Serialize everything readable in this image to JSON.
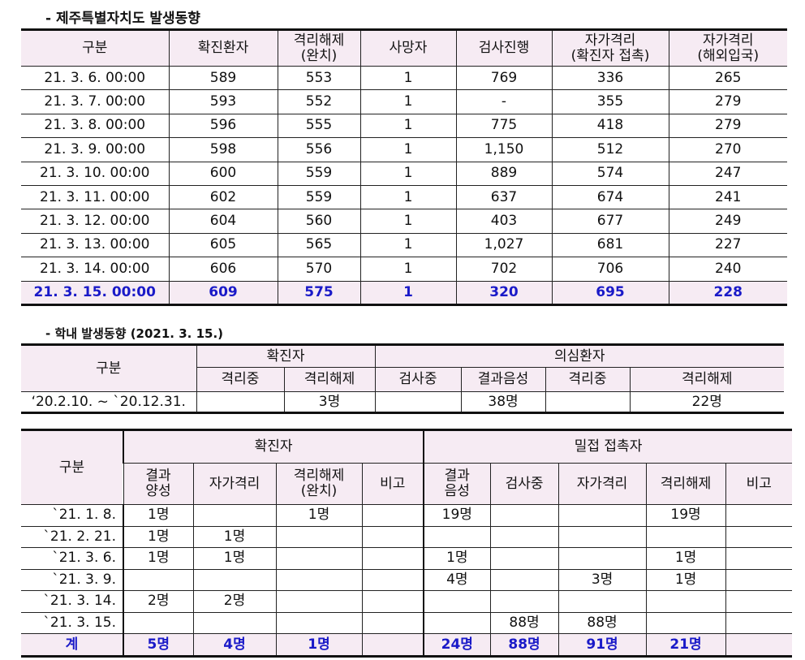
{
  "section1": {
    "title": "- 제주특별자치도 발생동향",
    "headers": [
      "구분",
      "확진환자",
      "격리해제\n(완치)",
      "사망자",
      "검사진행",
      "자가격리\n(확진자 접촉)",
      "자가격리\n(해외입국)"
    ],
    "rows": [
      [
        "21. 3.  6. 00:00",
        "589",
        "553",
        "1",
        "769",
        "336",
        "265"
      ],
      [
        "21. 3.  7. 00:00",
        "593",
        "552",
        "1",
        "-",
        "355",
        "279"
      ],
      [
        "21. 3.  8. 00:00",
        "596",
        "555",
        "1",
        "775",
        "418",
        "279"
      ],
      [
        "21. 3.  9. 00:00",
        "598",
        "556",
        "1",
        "1,150",
        "512",
        "270"
      ],
      [
        "21. 3. 10. 00:00",
        "600",
        "559",
        "1",
        "889",
        "574",
        "247"
      ],
      [
        "21. 3. 11. 00:00",
        "602",
        "559",
        "1",
        "637",
        "674",
        "241"
      ],
      [
        "21. 3. 12. 00:00",
        "604",
        "560",
        "1",
        "403",
        "677",
        "249"
      ],
      [
        "21. 3. 13. 00:00",
        "605",
        "565",
        "1",
        "1,027",
        "681",
        "227"
      ],
      [
        "21. 3. 14. 00:00",
        "606",
        "570",
        "1",
        "702",
        "706",
        "240"
      ]
    ],
    "total": [
      "21. 3. 15. 00:00",
      "609",
      "575",
      "1",
      "320",
      "695",
      "228"
    ]
  },
  "section2": {
    "title": "- 학내 발생동향 (2021. 3. 15.)",
    "h_category": "구분",
    "h_confirmed": "확진자",
    "h_suspected": "의심환자",
    "sub": [
      "격리중",
      "격리해제",
      "검사중",
      "결과음성",
      "격리중",
      "격리해제"
    ],
    "row": [
      "‘20.2.10. ~ `20.12.31.",
      "",
      "3명",
      "",
      "38명",
      "",
      "22명"
    ]
  },
  "section3": {
    "h_category": "구분",
    "h_confirmed": "확진자",
    "h_contact": "밀접 접촉자",
    "sub": [
      "결과\n양성",
      "자가격리",
      "격리해제\n(완치)",
      "비고",
      "결과\n음성",
      "검사중",
      "자가격리",
      "격리해제",
      "비고"
    ],
    "rows": [
      [
        "`21.  1.  8.",
        "1명",
        "",
        "1명",
        "",
        "19명",
        "",
        "",
        "19명",
        ""
      ],
      [
        "`21.  2. 21.",
        "1명",
        "1명",
        "",
        "",
        "",
        "",
        "",
        "",
        ""
      ],
      [
        "`21.  3.  6.",
        "1명",
        "1명",
        "",
        "",
        "1명",
        "",
        "",
        "1명",
        ""
      ],
      [
        "`21.  3.  9.",
        "",
        "",
        "",
        "",
        "4명",
        "",
        "3명",
        "1명",
        ""
      ],
      [
        "`21.  3. 14.",
        "2명",
        "2명",
        "",
        "",
        "",
        "",
        "",
        "",
        ""
      ],
      [
        "`21.  3. 15.",
        "",
        "",
        "",
        "",
        "",
        "88명",
        "88명",
        "",
        ""
      ]
    ],
    "total": [
      "계",
      "5명",
      "4명",
      "1명",
      "",
      "24명",
      "88명",
      "91명",
      "21명",
      ""
    ]
  }
}
